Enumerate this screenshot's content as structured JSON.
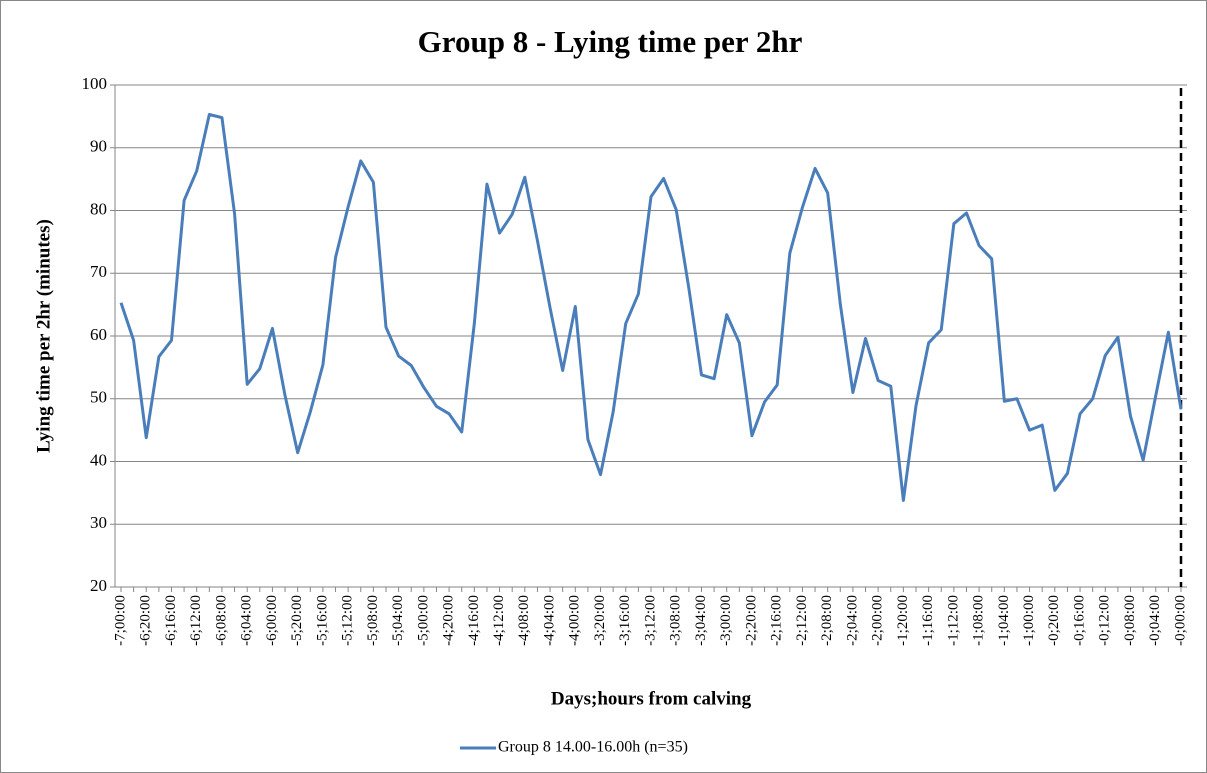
{
  "chart_data": {
    "type": "line",
    "title": "Group 8 - Lying time per 2hr",
    "y_label": "Lying time per 2hr (minutes)",
    "x_label": "Days;hours from calving",
    "categories": [
      "-7;00:00",
      null,
      "-6;20:00",
      null,
      "-6;16:00",
      null,
      "-6;12:00",
      null,
      "-6;08:00",
      null,
      "-6;04:00",
      null,
      "-6;00:00",
      null,
      "-5;20:00",
      null,
      "-5;16:00",
      null,
      "-5;12:00",
      null,
      "-5;08:00",
      null,
      "-5;04:00",
      null,
      "-5;00:00",
      null,
      "-4;20:00",
      null,
      "-4;16:00",
      null,
      "-4;12:00",
      null,
      "-4;08:00",
      null,
      "-4;04:00",
      null,
      "-4;00:00",
      null,
      "-3;20:00",
      null,
      "-3;16:00",
      null,
      "-3;12:00",
      null,
      "-3;08:00",
      null,
      "-3;04:00",
      null,
      "-3;00:00",
      null,
      "-2;20:00",
      null,
      "-2;16:00",
      null,
      "-2;12:00",
      null,
      "-2;08:00",
      null,
      "-2;04:00",
      null,
      "-2;00:00",
      null,
      "-1;20:00",
      null,
      "-1;16:00",
      null,
      "-1;12:00",
      null,
      "-1;08:00",
      null,
      "-1;04:00",
      null,
      "-1;00:00",
      null,
      "-0;20:00",
      null,
      "-0;16:00",
      null,
      "-0;12:00",
      null,
      "-0;08:00",
      null,
      "-0;04:00",
      null,
      "-0;00:00"
    ],
    "series": [
      {
        "name": "Group 8 14.00-16.00h (n=35)",
        "color": "#4a7ebb",
        "values": [
          65.3,
          59.3,
          43.8,
          56.7,
          59.3,
          81.6,
          86.3,
          95.3,
          94.8,
          79.5,
          52.3,
          54.8,
          61.2,
          50.5,
          41.4,
          47.9,
          55.4,
          72.5,
          80.6,
          87.9,
          84.5,
          61.4,
          56.8,
          55.3,
          51.8,
          48.8,
          47.6,
          44.7,
          62.0,
          84.2,
          76.4,
          79.4,
          85.3,
          75.2,
          64.5,
          54.5,
          64.7,
          43.5,
          37.9,
          47.9,
          62.0,
          66.7,
          82.2,
          85.1,
          80.1,
          67.6,
          53.8,
          53.2,
          63.4,
          58.9,
          44.1,
          49.5,
          52.2,
          73.2,
          80.5,
          86.7,
          82.8,
          65.1,
          51.0,
          59.6,
          52.9,
          52.0,
          33.8,
          48.9,
          58.9,
          61.0,
          77.9,
          79.6,
          74.4,
          72.3,
          49.6,
          50.0,
          45.0,
          45.8,
          35.4,
          38.1,
          47.6,
          50.0,
          56.9,
          59.8,
          47.2,
          40.2,
          50.5,
          60.6,
          48.3
        ]
      }
    ],
    "ylim": [
      20,
      100
    ],
    "yticks": [
      20,
      30,
      40,
      50,
      60,
      70,
      80,
      90,
      100
    ],
    "grid": true
  }
}
